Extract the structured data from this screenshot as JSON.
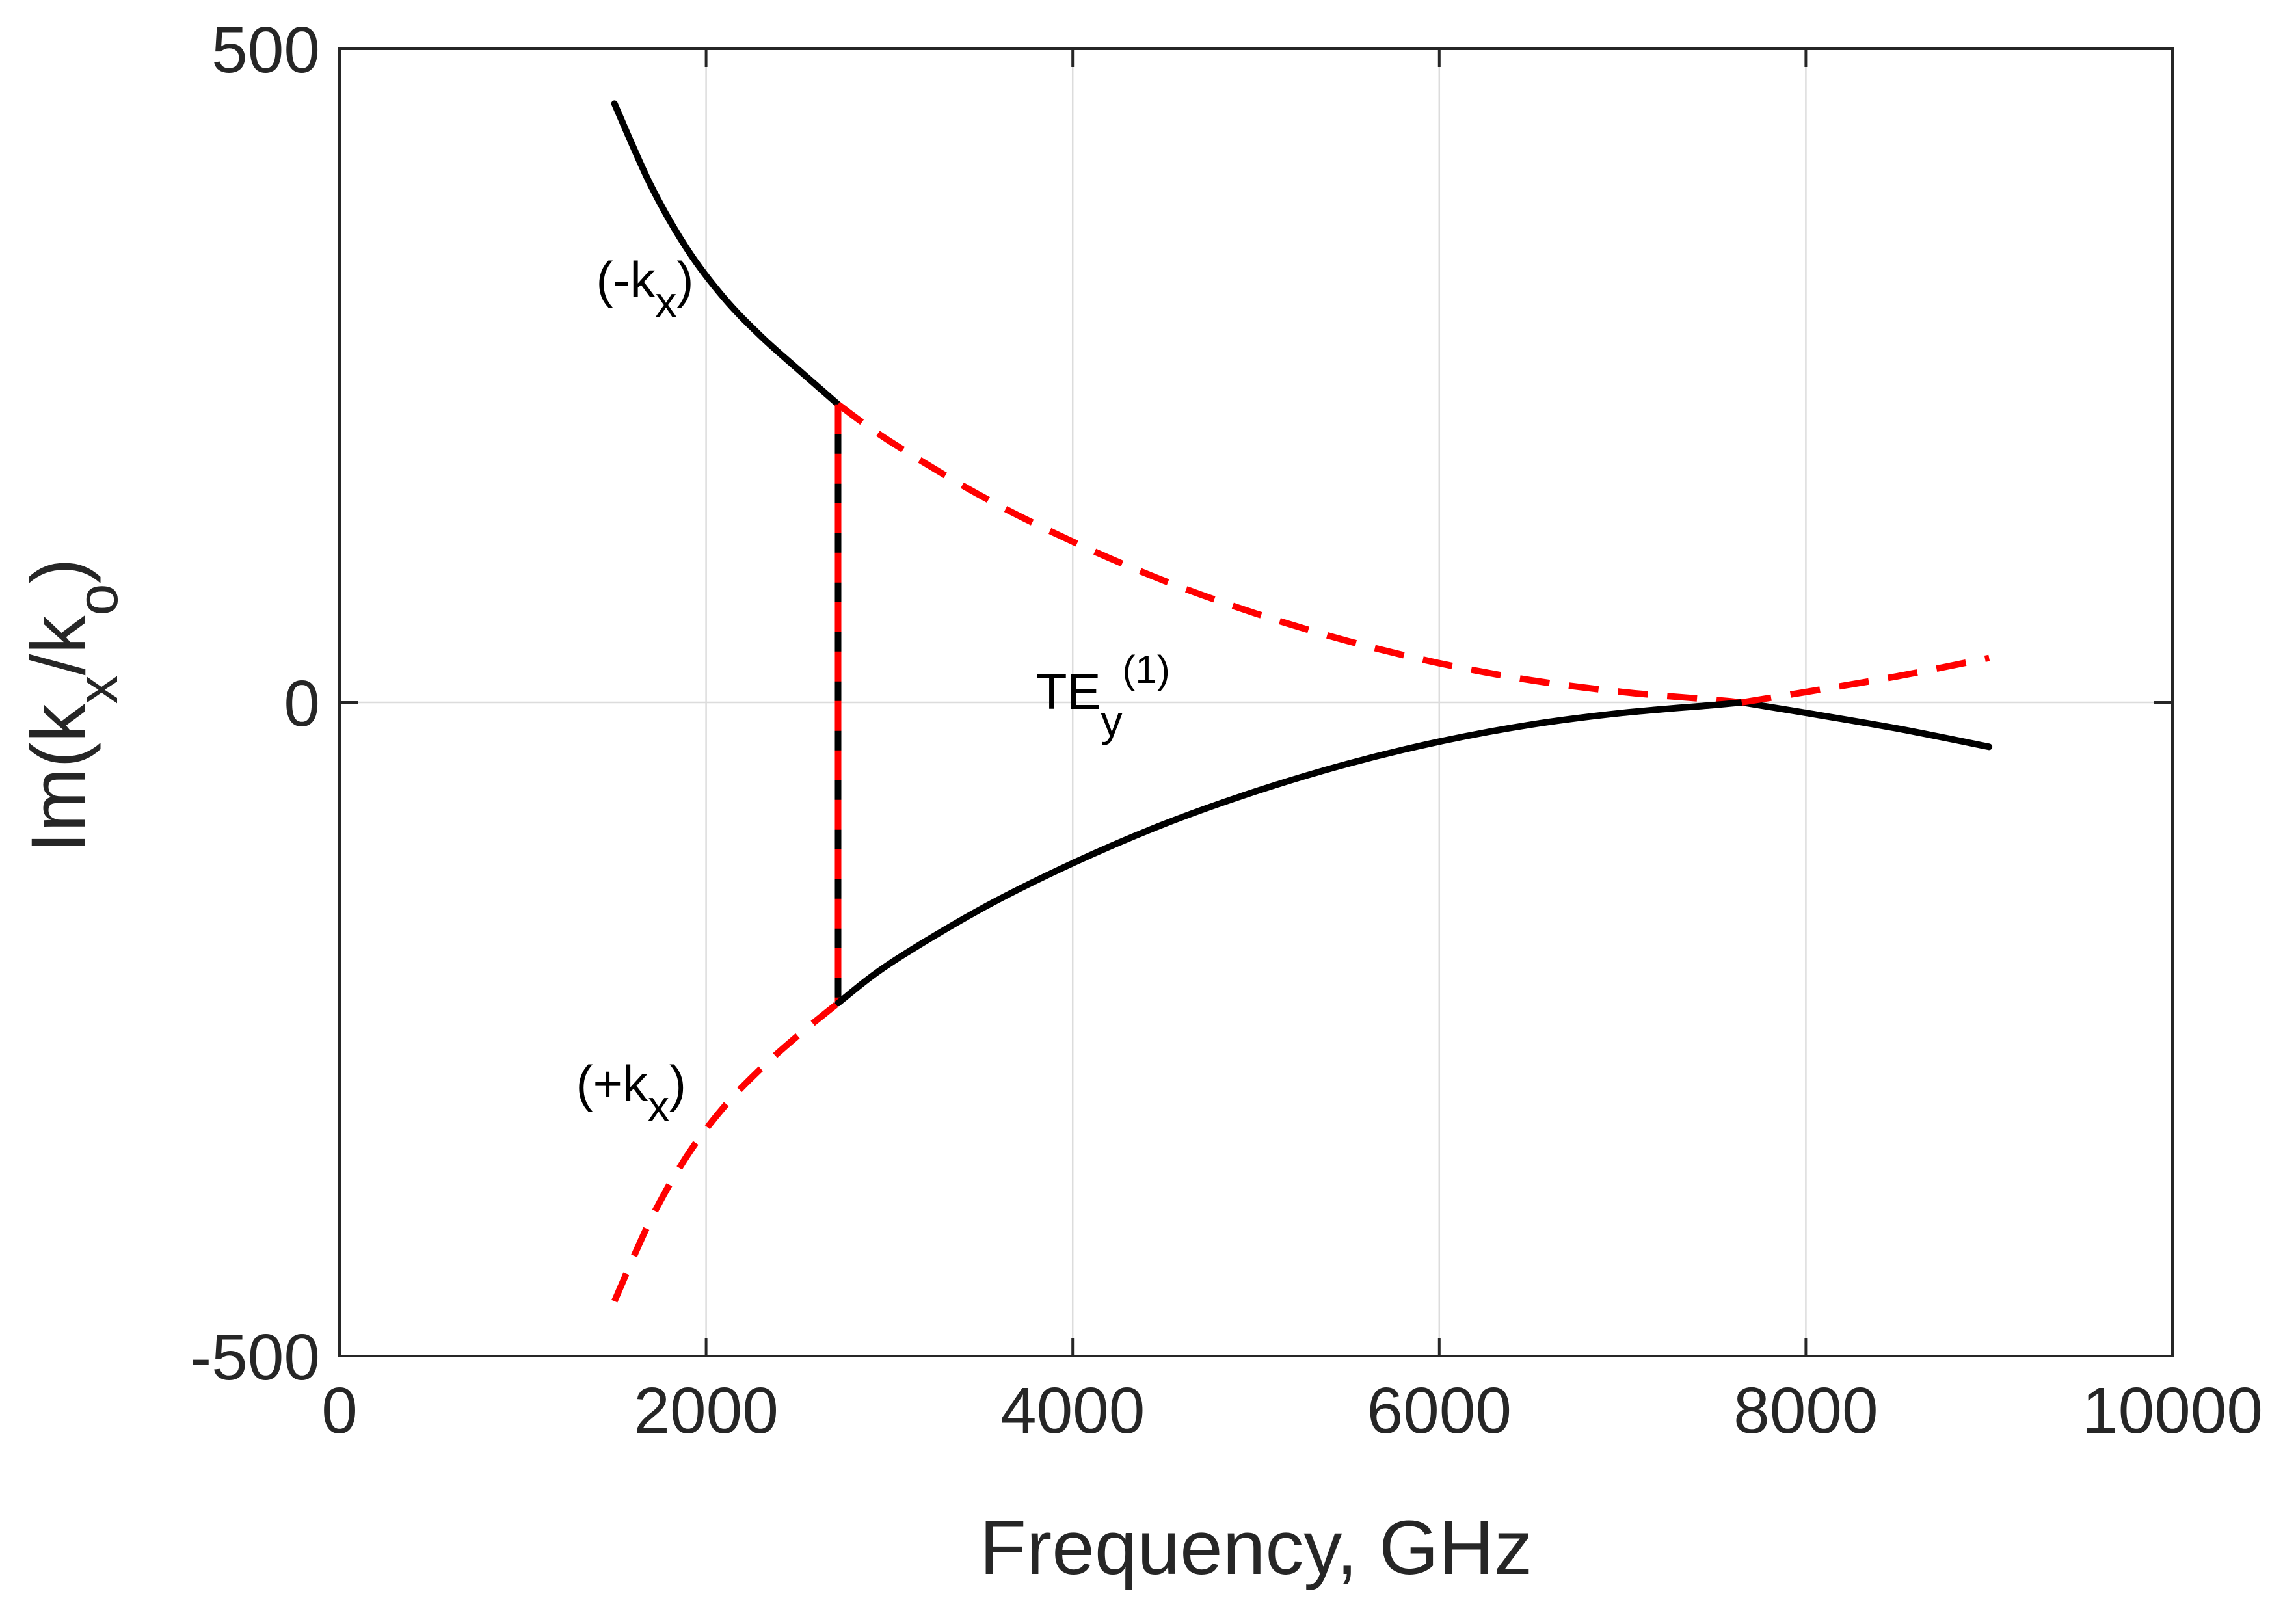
{
  "chart_data": {
    "type": "line",
    "title": "",
    "xlabel": "Frequency, GHz",
    "ylabel": "Im(k_x/k_o)",
    "xlim": [
      0,
      10000
    ],
    "ylim": [
      -500,
      500
    ],
    "grid": true,
    "x_ticks": [
      0,
      2000,
      4000,
      6000,
      8000,
      10000
    ],
    "y_ticks": [
      -500,
      0,
      500
    ],
    "x_tick_labels": [
      "0",
      "2000",
      "4000",
      "6000",
      "8000",
      "10000"
    ],
    "y_tick_labels": [
      "-500",
      "0",
      "500"
    ],
    "series": [
      {
        "name": "-kx solid (black)",
        "color": "#000000",
        "dashed": false,
        "x": [
          1500,
          1700,
          1900,
          2100,
          2300,
          2500,
          2720
        ],
        "y": [
          458,
          395,
          346,
          309,
          280,
          255,
          228
        ]
      },
      {
        "name": "vertical jump (black)",
        "color": "#000000",
        "dashed": false,
        "x": [
          2720,
          2720
        ],
        "y": [
          228,
          -230
        ]
      },
      {
        "name": "vertical jump (red dashed)",
        "color": "#ff0000",
        "dashed": true,
        "x": [
          2720,
          2720
        ],
        "y": [
          228,
          -230
        ]
      },
      {
        "name": "-kx dashed continuation (red)",
        "color": "#ff0000",
        "dashed": true,
        "x": [
          2720,
          3000,
          3500,
          4000,
          4500,
          5000,
          5500,
          6000,
          6500,
          7000,
          7500,
          7650
        ],
        "y": [
          228,
          200,
          158,
          123,
          93,
          68,
          47,
          30,
          17,
          8,
          2,
          0
        ]
      },
      {
        "name": "+kx solid (black)",
        "color": "#000000",
        "dashed": false,
        "x": [
          2720,
          3000,
          3500,
          4000,
          4500,
          5000,
          5500,
          6000,
          6500,
          7000,
          7500,
          7650,
          8000,
          8500,
          9000
        ],
        "y": [
          -230,
          -200,
          -158,
          -123,
          -93,
          -68,
          -47,
          -30,
          -17,
          -8,
          -2,
          0,
          -8,
          -20,
          -34
        ]
      },
      {
        "name": "+kx dashed (red)",
        "color": "#ff0000",
        "dashed": true,
        "x": [
          1500,
          1700,
          1900,
          2100,
          2300,
          2500,
          2720
        ],
        "y": [
          -458,
          -395,
          -346,
          -309,
          -280,
          -255,
          -230
        ]
      },
      {
        "name": "dashed rise after crossing (red)",
        "color": "#ff0000",
        "dashed": true,
        "x": [
          7650,
          8000,
          8500,
          9000
        ],
        "y": [
          0,
          8,
          20,
          34
        ]
      }
    ],
    "annotations": [
      {
        "id": "minus-kx",
        "prefix": "(-k",
        "sub": "x",
        "suffix": ")",
        "x": 1400,
        "y": 310
      },
      {
        "id": "plus-kx",
        "prefix": "(+k",
        "sub": "x",
        "suffix": ")",
        "x": 1290,
        "y": -305
      },
      {
        "id": "te-mode",
        "prefix": "TE",
        "sub": "y",
        "sup": "(1)",
        "x": 3800,
        "y": -5
      }
    ]
  }
}
